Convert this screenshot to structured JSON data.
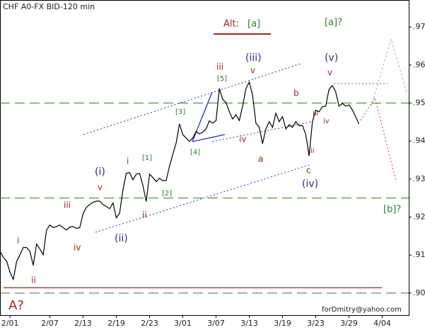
{
  "chart_data": {
    "type": "line",
    "title": "CHF A0-FX BID-120 min",
    "watermark": "forDmitry@yahoo.com",
    "categories": [
      null,
      null,
      null,
      "2/01",
      null,
      null,
      null,
      null,
      null,
      null,
      null,
      null,
      null,
      null,
      null,
      "2/07",
      null,
      null,
      null,
      null,
      null,
      null,
      null,
      null,
      null,
      "2/13",
      null,
      null,
      null,
      null,
      null,
      null,
      null,
      null,
      null,
      "2/19",
      null,
      null,
      null,
      null,
      null,
      null,
      null,
      null,
      null,
      "2/23",
      null,
      null,
      null,
      null,
      null,
      null,
      null,
      null,
      null,
      "3/01",
      null,
      null,
      null,
      null,
      null,
      null,
      null,
      null,
      null,
      "3/07",
      null,
      null,
      null,
      null,
      null,
      null,
      null,
      null,
      null,
      "3/13",
      null,
      null,
      null,
      null,
      null,
      null,
      null,
      null,
      null,
      "3/19",
      null,
      null,
      null,
      null,
      null,
      null,
      null,
      null,
      null,
      "3/23",
      null,
      null,
      null,
      null,
      null,
      null,
      null,
      null,
      null,
      "3/29",
      null,
      null,
      null,
      null,
      null,
      null,
      null,
      null,
      null,
      "4/04",
      null,
      null,
      null,
      null,
      null,
      null,
      null
    ],
    "series": [
      {
        "color": "#000000",
        "values": [
          0.911,
          0.9094,
          0.9084,
          0.9055,
          0.9036,
          0.9083,
          0.9101,
          0.912,
          0.912,
          0.911,
          0.9073,
          0.9129,
          0.9116,
          0.9101,
          0.9166,
          0.9179,
          0.9172,
          0.9175,
          0.9179,
          0.9172,
          0.9166,
          0.9174,
          0.9175,
          0.917,
          0.9172,
          0.9209,
          0.9226,
          0.9233,
          0.9239,
          0.9242,
          0.9242,
          0.9233,
          0.9228,
          0.9222,
          0.9237,
          0.9198,
          0.9211,
          0.9272,
          0.9315,
          0.9317,
          0.9298,
          0.9313,
          0.9315,
          0.9283,
          0.9241,
          0.9313,
          0.9304,
          0.9293,
          0.9302,
          0.9296,
          0.9296,
          0.9334,
          0.9365,
          0.9395,
          0.9445,
          0.9417,
          0.9408,
          0.9399,
          0.9408,
          0.9425,
          0.9419,
          0.9423,
          0.9432,
          0.9453,
          0.9447,
          0.9454,
          0.9538,
          0.951,
          0.9501,
          0.9477,
          0.9458,
          0.9469,
          0.9454,
          0.9492,
          0.9538,
          0.9555,
          0.952,
          0.9447,
          0.9436,
          0.9393,
          0.9432,
          0.9451,
          0.9436,
          0.9473,
          0.9451,
          0.9464,
          0.9432,
          0.9443,
          0.9436,
          0.9451,
          0.944,
          0.9441,
          0.9417,
          0.9361,
          0.9451,
          0.9481,
          0.9477,
          0.949,
          0.9492,
          0.9536,
          0.9546,
          0.9529,
          0.9492,
          0.9499,
          0.9492,
          0.9495,
          0.9482,
          0.9464,
          0.9445,
          null,
          null,
          null,
          null,
          null,
          null,
          null,
          null,
          null,
          null,
          null,
          null,
          null,
          null
        ]
      }
    ],
    "ylim": [
      0.8942,
      0.9771
    ],
    "yticks": [
      {
        "value": 0.9,
        "label": ".90"
      },
      {
        "value": 0.91,
        "label": ".91"
      },
      {
        "value": 0.92,
        "label": ".92"
      },
      {
        "value": 0.93,
        "label": ".93"
      },
      {
        "value": 0.94,
        "label": ".94"
      },
      {
        "value": 0.95,
        "label": ".95"
      },
      {
        "value": 0.96,
        "label": ".96"
      },
      {
        "value": 0.97,
        "label": ".97"
      }
    ],
    "reference_lines": [
      {
        "value": 0.95,
        "color": "#2e7d2e"
      },
      {
        "value": 0.925,
        "color": "#2e7d2e"
      },
      {
        "value": 0.9,
        "color": "#2e7d2e"
      },
      {
        "value": 0.9014,
        "color": "#a0281e"
      }
    ],
    "annotations": [
      {
        "text": "A?"
      },
      {
        "text": "i"
      },
      {
        "text": "ii"
      },
      {
        "text": "iii"
      },
      {
        "text": "iv"
      },
      {
        "text": "v"
      },
      {
        "text": "(i)"
      },
      {
        "text": "(ii)"
      },
      {
        "text": "i"
      },
      {
        "text": "ii"
      },
      {
        "text": "[1]"
      },
      {
        "text": "[2]"
      },
      {
        "text": "[3]"
      },
      {
        "text": "[4]"
      },
      {
        "text": "[5]"
      },
      {
        "text": "iii"
      },
      {
        "text": "(iii)"
      },
      {
        "text": "v"
      },
      {
        "text": "iv"
      },
      {
        "text": "a"
      },
      {
        "text": "b"
      },
      {
        "text": "c"
      },
      {
        "text": "(iv)"
      },
      {
        "text": "ii"
      },
      {
        "text": "iii"
      },
      {
        "text": "iv"
      },
      {
        "text": "[a]?"
      },
      {
        "text": "(v)"
      },
      {
        "text": "v"
      },
      {
        "text": "[b]?"
      },
      {
        "text": "Alt:"
      },
      {
        "text": "[a]"
      }
    ]
  }
}
